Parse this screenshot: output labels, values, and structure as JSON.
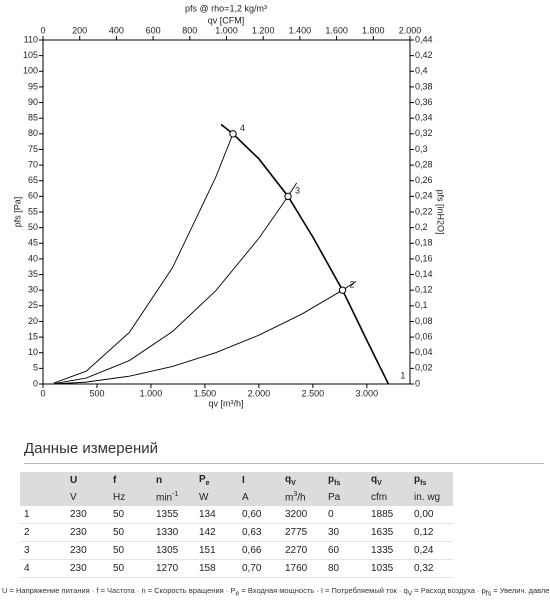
{
  "chart_data": {
    "type": "line",
    "title": "pfs @ rho=1,2 kg/m³",
    "x_label": "qv [m³/h]",
    "x2_label": "qv [CFM]",
    "y_label": "pfs [Pa]",
    "y2_label": "pfs [inH2O]",
    "xlim": [
      0,
      3400
    ],
    "xticks": [
      0,
      500,
      {
        "value": 1000,
        "label": "1.000"
      },
      {
        "value": 1500,
        "label": "1.500"
      },
      {
        "value": 2000,
        "label": "2.000"
      },
      {
        "value": 2500,
        "label": "2.500"
      },
      {
        "value": 3000,
        "label": "3.000"
      }
    ],
    "x2lim": [
      0,
      2000
    ],
    "x2ticks": [
      0,
      200,
      400,
      600,
      800,
      {
        "value": 1000,
        "label": "1.000"
      },
      {
        "value": 1200,
        "label": "1.200"
      },
      {
        "value": 1400,
        "label": "1.400"
      },
      {
        "value": 1600,
        "label": "1.600"
      },
      {
        "value": 1800,
        "label": "1.800"
      },
      {
        "value": 2000,
        "label": "2.000"
      }
    ],
    "ylim": [
      0,
      110
    ],
    "yticks": [
      0,
      5,
      10,
      15,
      20,
      25,
      30,
      35,
      40,
      45,
      50,
      55,
      60,
      65,
      70,
      75,
      80,
      85,
      90,
      95,
      100,
      105,
      110
    ],
    "y2lim": [
      0,
      0.44
    ],
    "y2ticks": [
      0,
      {
        "value": 0.02,
        "label": "0,02"
      },
      {
        "value": 0.04,
        "label": "0,04"
      },
      {
        "value": 0.06,
        "label": "0,06"
      },
      {
        "value": 0.08,
        "label": "0,08"
      },
      {
        "value": 0.1,
        "label": "0,1"
      },
      {
        "value": 0.12,
        "label": "0,12"
      },
      {
        "value": 0.14,
        "label": "0,14"
      },
      {
        "value": 0.16,
        "label": "0,16"
      },
      {
        "value": 0.18,
        "label": "0,18"
      },
      {
        "value": 0.2,
        "label": "0,2"
      },
      {
        "value": 0.22,
        "label": "0,22"
      },
      {
        "value": 0.24,
        "label": "0,24"
      },
      {
        "value": 0.26,
        "label": "0,26"
      },
      {
        "value": 0.28,
        "label": "0,28"
      },
      {
        "value": 0.3,
        "label": "0,3"
      },
      {
        "value": 0.32,
        "label": "0,32"
      },
      {
        "value": 0.34,
        "label": "0,34"
      },
      {
        "value": 0.36,
        "label": "0,36"
      },
      {
        "value": 0.38,
        "label": "0,38"
      },
      {
        "value": 0.4,
        "label": "0,4"
      },
      {
        "value": 0.42,
        "label": "0,42"
      },
      {
        "value": 0.44,
        "label": "0,44"
      }
    ],
    "grid": false,
    "series": [
      {
        "color": "#000000",
        "width": 1.6,
        "x": [
          1650,
          1760,
          2000,
          2270,
          2500,
          2775,
          3000,
          3200
        ],
        "values": [
          83,
          80,
          72,
          60,
          47,
          30,
          14,
          0
        ]
      },
      {
        "color": "#000000",
        "width": 0.9,
        "x": [
          100,
          400,
          800,
          1200,
          1600,
          1760
        ],
        "values": [
          0.3,
          4.1,
          16.5,
          37.2,
          66.1,
          80
        ]
      },
      {
        "color": "#000000",
        "width": 0.9,
        "x": [
          100,
          400,
          800,
          1200,
          1600,
          2000,
          2270,
          2350
        ],
        "values": [
          0.1,
          1.9,
          7.5,
          16.8,
          29.8,
          46.6,
          60,
          64.3
        ]
      },
      {
        "color": "#000000",
        "width": 0.9,
        "x": [
          100,
          400,
          800,
          1200,
          1600,
          2000,
          2400,
          2775,
          2900
        ],
        "values": [
          0,
          0.6,
          2.5,
          5.6,
          10,
          15.6,
          22.4,
          30,
          32.8
        ]
      }
    ],
    "points": [
      {
        "label": "1",
        "x": 3200,
        "y": 0
      },
      {
        "label": "2",
        "x": 2775,
        "y": 30
      },
      {
        "label": "3",
        "x": 2270,
        "y": 60
      },
      {
        "label": "4",
        "x": 1760,
        "y": 80
      }
    ]
  },
  "table": {
    "title": "Данные измерений",
    "header": [
      "U",
      "f",
      "n",
      {
        "text": "P",
        "sub": "e"
      },
      "I",
      {
        "text": "q",
        "sub": "V"
      },
      {
        "text": "p",
        "sub": "fs"
      },
      {
        "text": "q",
        "sub": "V"
      },
      {
        "text": "p",
        "sub": "fs"
      }
    ],
    "units": [
      "V",
      "Hz",
      {
        "text": "min",
        "sup": "-1"
      },
      "W",
      "A",
      {
        "text": "m",
        "sup": "3",
        "after": "/h"
      },
      "Pa",
      "cfm",
      "in. wg"
    ],
    "rows": [
      [
        "1",
        "230",
        "50",
        "1355",
        "134",
        "0,60",
        "3200",
        "0",
        "1885",
        "0,00"
      ],
      [
        "2",
        "230",
        "50",
        "1330",
        "142",
        "0,63",
        "2775",
        "30",
        "1635",
        "0,12"
      ],
      [
        "3",
        "230",
        "50",
        "1305",
        "151",
        "0,66",
        "2270",
        "60",
        "1335",
        "0,24"
      ],
      [
        "4",
        "230",
        "50",
        "1270",
        "158",
        "0,70",
        "1760",
        "80",
        "1035",
        "0,32"
      ]
    ]
  },
  "footer": [
    {
      "sym": "U",
      "text": "= Напряжение питания"
    },
    {
      "sym": "f",
      "text": "= Частота"
    },
    {
      "sym": "n",
      "text": "= Скорость вращения"
    },
    {
      "sym": "P",
      "sub": "e",
      "text": "= Входная мощность"
    },
    {
      "sym": "I",
      "text": "= Потребляемый ток"
    },
    {
      "sym": "q",
      "sub": "V",
      "text": "= Расход воздуха"
    },
    {
      "sym": "p",
      "sub": "fs",
      "text": "= Увелич. давления"
    }
  ]
}
